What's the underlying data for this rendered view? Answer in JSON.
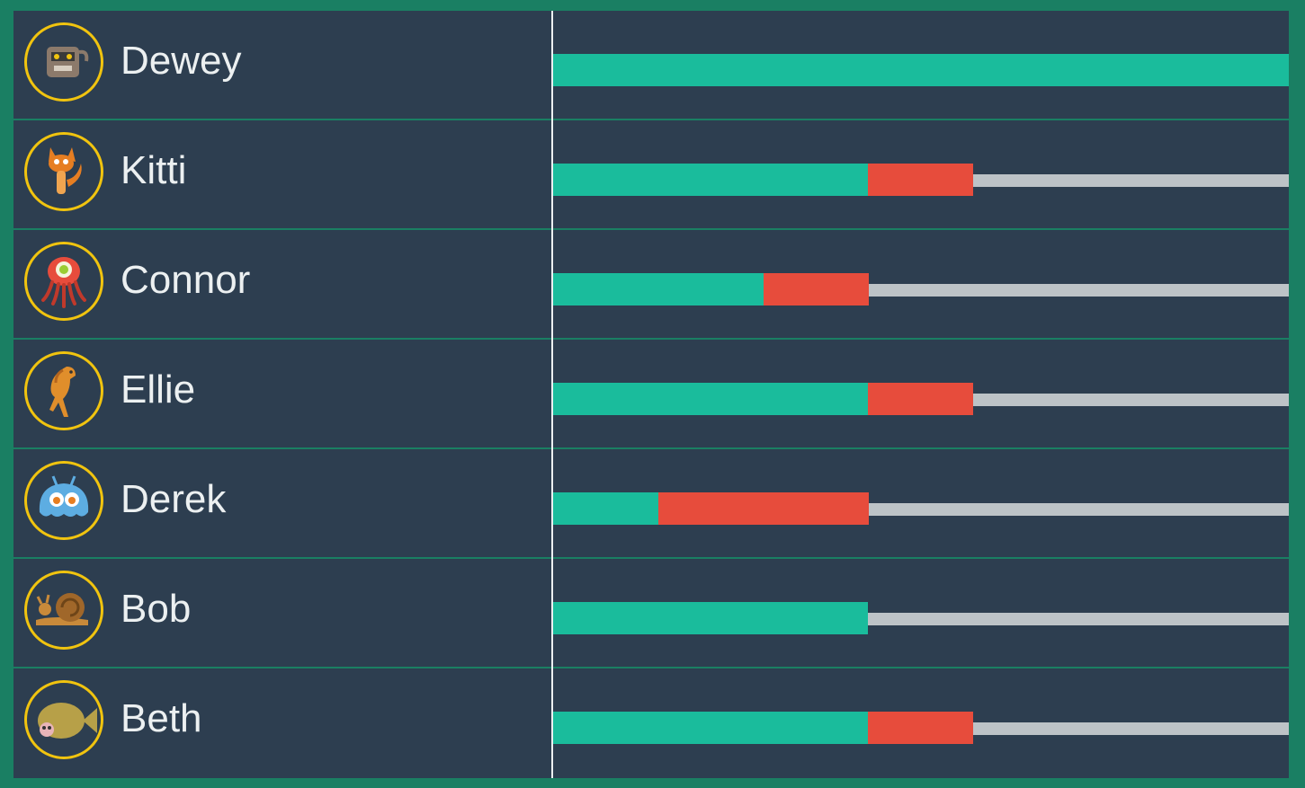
{
  "colors": {
    "frame": "#1a7f63",
    "panel": "#2d3e50",
    "avatar_ring": "#f1c40f",
    "complete": "#1abc9c",
    "problem": "#e74c3c",
    "remaining": "#bdc3c7",
    "text": "#ecf0f1"
  },
  "students": [
    {
      "name": "Dewey",
      "avatar_icon": "robot-monster-icon",
      "progress": {
        "complete": 1.0,
        "problem": 0.0,
        "track": false
      }
    },
    {
      "name": "Kitti",
      "avatar_icon": "fox-icon",
      "progress": {
        "complete": 0.428,
        "problem": 0.143,
        "track": true
      }
    },
    {
      "name": "Connor",
      "avatar_icon": "octopus-icon",
      "progress": {
        "complete": 0.286,
        "problem": 0.143,
        "track": true
      }
    },
    {
      "name": "Ellie",
      "avatar_icon": "horse-icon",
      "progress": {
        "complete": 0.428,
        "problem": 0.143,
        "track": true
      }
    },
    {
      "name": "Derek",
      "avatar_icon": "blob-alien-icon",
      "progress": {
        "complete": 0.143,
        "problem": 0.286,
        "track": true
      }
    },
    {
      "name": "Bob",
      "avatar_icon": "snail-icon",
      "progress": {
        "complete": 0.428,
        "problem": 0.0,
        "track": true
      }
    },
    {
      "name": "Beth",
      "avatar_icon": "fish-icon",
      "progress": {
        "complete": 0.428,
        "problem": 0.143,
        "track": true
      }
    }
  ]
}
